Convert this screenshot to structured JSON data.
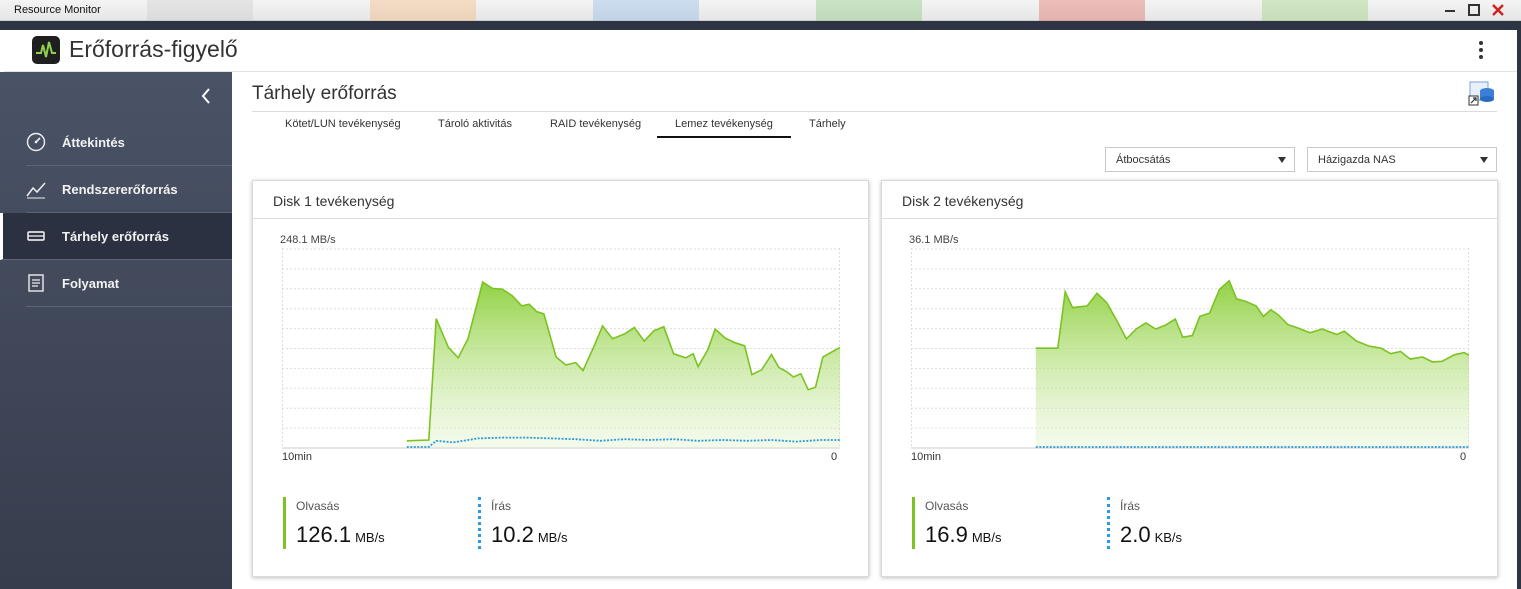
{
  "window": {
    "title": "Resource Monitor"
  },
  "app": {
    "title": "Erőforrás-figyelő"
  },
  "sidebar": {
    "items": [
      {
        "label": "Áttekintés",
        "icon": "gauge-icon",
        "active": false
      },
      {
        "label": "Rendszererőforrás",
        "icon": "line-chart-icon",
        "active": false
      },
      {
        "label": "Tárhely erőforrás",
        "icon": "storage-icon",
        "active": true
      },
      {
        "label": "Folyamat",
        "icon": "process-list-icon",
        "active": false
      }
    ]
  },
  "page": {
    "title": "Tárhely erőforrás"
  },
  "tabs": [
    {
      "label": "Kötet/LUN tevékenység",
      "active": false
    },
    {
      "label": "Tároló aktivitás",
      "active": false
    },
    {
      "label": "RAID tevékenység",
      "active": false
    },
    {
      "label": "Lemez tevékenység",
      "active": true
    },
    {
      "label": "Tárhely",
      "active": false
    }
  ],
  "filters": {
    "metric_select": "Átbocsátás",
    "host_select": "Házigazda NAS"
  },
  "colors": {
    "read": "#7cc322",
    "write": "#2a9be0",
    "sidebar": "#404859"
  },
  "disks": [
    {
      "title": "Disk 1 tevékenység",
      "ymax_label": "248.1 MB/s",
      "x_start_label": "10min",
      "x_end_label": "0",
      "read_label": "Olvasás",
      "read_value": "126.1",
      "read_unit": "MB/s",
      "write_label": "Írás",
      "write_value": "10.2",
      "write_unit": "MB/s",
      "chart_data": {
        "type": "area",
        "ylim": [
          0,
          248.1
        ],
        "read_series": [
          {
            "x": 0.255,
            "y": 9
          },
          {
            "x": 0.3,
            "y": 10
          },
          {
            "x": 0.315,
            "y": 162
          },
          {
            "x": 0.34,
            "y": 126
          },
          {
            "x": 0.36,
            "y": 113
          },
          {
            "x": 0.38,
            "y": 137
          },
          {
            "x": 0.41,
            "y": 208
          },
          {
            "x": 0.43,
            "y": 200
          },
          {
            "x": 0.45,
            "y": 199
          },
          {
            "x": 0.47,
            "y": 191
          },
          {
            "x": 0.49,
            "y": 178
          },
          {
            "x": 0.505,
            "y": 180
          },
          {
            "x": 0.52,
            "y": 171
          },
          {
            "x": 0.535,
            "y": 168
          },
          {
            "x": 0.56,
            "y": 114
          },
          {
            "x": 0.58,
            "y": 104
          },
          {
            "x": 0.6,
            "y": 107
          },
          {
            "x": 0.615,
            "y": 97
          },
          {
            "x": 0.635,
            "y": 124
          },
          {
            "x": 0.655,
            "y": 153
          },
          {
            "x": 0.675,
            "y": 137
          },
          {
            "x": 0.7,
            "y": 143
          },
          {
            "x": 0.72,
            "y": 151
          },
          {
            "x": 0.74,
            "y": 134
          },
          {
            "x": 0.76,
            "y": 147
          },
          {
            "x": 0.78,
            "y": 152
          },
          {
            "x": 0.8,
            "y": 118
          },
          {
            "x": 0.825,
            "y": 113
          },
          {
            "x": 0.84,
            "y": 118
          },
          {
            "x": 0.85,
            "y": 102
          },
          {
            "x": 0.87,
            "y": 123
          },
          {
            "x": 0.885,
            "y": 149
          },
          {
            "x": 0.905,
            "y": 138
          },
          {
            "x": 0.925,
            "y": 132
          },
          {
            "x": 0.945,
            "y": 128
          },
          {
            "x": 0.96,
            "y": 92
          },
          {
            "x": 0.98,
            "y": 98
          },
          {
            "x": 1.0,
            "y": 117
          },
          {
            "x": 1.015,
            "y": 101
          },
          {
            "x": 1.03,
            "y": 96
          },
          {
            "x": 1.045,
            "y": 89
          },
          {
            "x": 1.06,
            "y": 93
          },
          {
            "x": 1.075,
            "y": 73
          },
          {
            "x": 1.09,
            "y": 76
          },
          {
            "x": 1.105,
            "y": 114
          },
          {
            "x": 1.125,
            "y": 121
          },
          {
            "x": 1.14,
            "y": 126
          }
        ],
        "write_series": [
          {
            "x": 0.255,
            "y": 0
          },
          {
            "x": 0.3,
            "y": 0
          },
          {
            "x": 0.315,
            "y": 9
          },
          {
            "x": 0.35,
            "y": 7
          },
          {
            "x": 0.4,
            "y": 12
          },
          {
            "x": 0.45,
            "y": 13
          },
          {
            "x": 0.5,
            "y": 13
          },
          {
            "x": 0.55,
            "y": 12
          },
          {
            "x": 0.6,
            "y": 11
          },
          {
            "x": 0.65,
            "y": 9
          },
          {
            "x": 0.7,
            "y": 11
          },
          {
            "x": 0.75,
            "y": 10
          },
          {
            "x": 0.8,
            "y": 11
          },
          {
            "x": 0.85,
            "y": 9
          },
          {
            "x": 0.9,
            "y": 10
          },
          {
            "x": 0.95,
            "y": 9
          },
          {
            "x": 1.0,
            "y": 10
          },
          {
            "x": 1.05,
            "y": 8
          },
          {
            "x": 1.1,
            "y": 10
          },
          {
            "x": 1.14,
            "y": 10
          }
        ]
      }
    },
    {
      "title": "Disk 2 tevékenység",
      "ymax_label": "36.1 MB/s",
      "x_start_label": "10min",
      "x_end_label": "0",
      "read_label": "Olvasás",
      "read_value": "16.9",
      "read_unit": "MB/s",
      "write_label": "Írás",
      "write_value": "2.0",
      "write_unit": "KB/s",
      "chart_data": {
        "type": "area",
        "ylim": [
          0,
          36.1
        ],
        "read_series": [
          {
            "x": 0.255,
            "y": 18.2
          },
          {
            "x": 0.3,
            "y": 18.2
          },
          {
            "x": 0.315,
            "y": 28.5
          },
          {
            "x": 0.33,
            "y": 25.6
          },
          {
            "x": 0.36,
            "y": 25.9
          },
          {
            "x": 0.38,
            "y": 28.2
          },
          {
            "x": 0.4,
            "y": 26.5
          },
          {
            "x": 0.42,
            "y": 23.3
          },
          {
            "x": 0.44,
            "y": 19.9
          },
          {
            "x": 0.46,
            "y": 21.7
          },
          {
            "x": 0.48,
            "y": 22.8
          },
          {
            "x": 0.5,
            "y": 21.7
          },
          {
            "x": 0.52,
            "y": 22.4
          },
          {
            "x": 0.54,
            "y": 23.5
          },
          {
            "x": 0.555,
            "y": 20.2
          },
          {
            "x": 0.575,
            "y": 20.5
          },
          {
            "x": 0.59,
            "y": 24.0
          },
          {
            "x": 0.61,
            "y": 24.6
          },
          {
            "x": 0.63,
            "y": 28.9
          },
          {
            "x": 0.65,
            "y": 30.5
          },
          {
            "x": 0.665,
            "y": 27.2
          },
          {
            "x": 0.685,
            "y": 26.7
          },
          {
            "x": 0.705,
            "y": 25.9
          },
          {
            "x": 0.72,
            "y": 24.0
          },
          {
            "x": 0.735,
            "y": 25.2
          },
          {
            "x": 0.75,
            "y": 24.3
          },
          {
            "x": 0.77,
            "y": 22.5
          },
          {
            "x": 0.79,
            "y": 21.9
          },
          {
            "x": 0.815,
            "y": 21.0
          },
          {
            "x": 0.84,
            "y": 21.7
          },
          {
            "x": 0.87,
            "y": 20.7
          },
          {
            "x": 0.885,
            "y": 21.3
          },
          {
            "x": 0.91,
            "y": 19.5
          },
          {
            "x": 0.935,
            "y": 18.6
          },
          {
            "x": 0.96,
            "y": 18.2
          },
          {
            "x": 0.98,
            "y": 17.2
          },
          {
            "x": 1.0,
            "y": 17.6
          },
          {
            "x": 1.02,
            "y": 16.2
          },
          {
            "x": 1.045,
            "y": 16.6
          },
          {
            "x": 1.065,
            "y": 15.7
          },
          {
            "x": 1.085,
            "y": 15.8
          },
          {
            "x": 1.11,
            "y": 17.0
          },
          {
            "x": 1.13,
            "y": 17.4
          },
          {
            "x": 1.14,
            "y": 16.9
          }
        ],
        "write_series": [
          {
            "x": 0.255,
            "y": 0
          },
          {
            "x": 1.14,
            "y": 0
          }
        ]
      }
    }
  ]
}
